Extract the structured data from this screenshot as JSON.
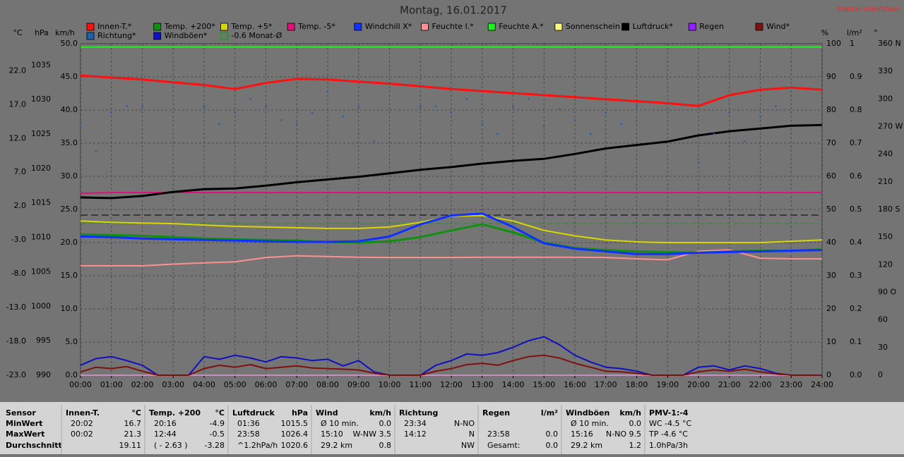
{
  "title": "Montag, 16.01.2017",
  "station": "Station Göritzhain",
  "chart_data": {
    "type": "line",
    "x": [
      0,
      1,
      2,
      3,
      4,
      5,
      6,
      7,
      8,
      9,
      10,
      11,
      12,
      13,
      14,
      15,
      16,
      17,
      18,
      19,
      20,
      21,
      22,
      23,
      24
    ],
    "xlim": [
      0,
      24
    ],
    "xticks": [
      {
        "value": 0,
        "label": "00:00"
      },
      {
        "value": 1,
        "label": "01:00"
      },
      {
        "value": 2,
        "label": "02:00"
      },
      {
        "value": 3,
        "label": "03:00"
      },
      {
        "value": 4,
        "label": "04:00"
      },
      {
        "value": 5,
        "label": "05:00"
      },
      {
        "value": 6,
        "label": "06:00"
      },
      {
        "value": 7,
        "label": "07:00"
      },
      {
        "value": 8,
        "label": "08:00"
      },
      {
        "value": 9,
        "label": "09:00"
      },
      {
        "value": 10,
        "label": "10:00"
      },
      {
        "value": 11,
        "label": "11:00"
      },
      {
        "value": 12,
        "label": "12:00"
      },
      {
        "value": 13,
        "label": "13:00"
      },
      {
        "value": 14,
        "label": "14:00"
      },
      {
        "value": 15,
        "label": "15:00"
      },
      {
        "value": 16,
        "label": "16:00"
      },
      {
        "value": 17,
        "label": "17:00"
      },
      {
        "value": 18,
        "label": "18:00"
      },
      {
        "value": 19,
        "label": "19:00"
      },
      {
        "value": 20,
        "label": "20:00"
      },
      {
        "value": 21,
        "label": "21:00"
      },
      {
        "value": 22,
        "label": "22:00"
      },
      {
        "value": 23,
        "label": "23:00"
      },
      {
        "value": 24,
        "label": "24:00"
      }
    ],
    "grid": true,
    "axes": {
      "temp": {
        "label": "°C",
        "side": "left",
        "ylim": [
          -23,
          26
        ],
        "yticks": [
          {
            "value": -23,
            "label": "-23.0"
          },
          {
            "value": -18,
            "label": "-18.0"
          },
          {
            "value": -13,
            "label": "-13.0"
          },
          {
            "value": -8,
            "label": "-8.0"
          },
          {
            "value": -3,
            "label": "-3.0"
          },
          {
            "value": 2,
            "label": "2.0"
          },
          {
            "value": 7,
            "label": "7.0"
          },
          {
            "value": 12,
            "label": "12.0"
          },
          {
            "value": 17,
            "label": "17.0"
          },
          {
            "value": 22,
            "label": "22.0"
          }
        ]
      },
      "pressure": {
        "label": "hPa",
        "side": "left",
        "ylim": [
          990,
          1038.1
        ],
        "yticks": [
          990,
          995,
          1000,
          1005,
          1010,
          1015,
          1020,
          1025,
          1030,
          1035
        ]
      },
      "wind": {
        "label": "km/h",
        "side": "left",
        "ylim": [
          0,
          50
        ],
        "yticks": [
          {
            "value": 0,
            "label": "0.0"
          },
          {
            "value": 5,
            "label": "5.0"
          },
          {
            "value": 10,
            "label": "10.0"
          },
          {
            "value": 15,
            "label": "15.0"
          },
          {
            "value": 20,
            "label": "20.0"
          },
          {
            "value": 25,
            "label": "25.0"
          },
          {
            "value": 30,
            "label": "30.0"
          },
          {
            "value": 35,
            "label": "35.0"
          },
          {
            "value": 40,
            "label": "40.0"
          },
          {
            "value": 45,
            "label": "45.0"
          },
          {
            "value": 50,
            "label": "50.0"
          }
        ]
      },
      "humidity": {
        "label": "%",
        "side": "right",
        "ylim": [
          0,
          100
        ],
        "yticks": [
          0,
          10,
          20,
          30,
          40,
          50,
          60,
          70,
          80,
          90,
          100
        ],
        "grid": true
      },
      "rain": {
        "label": "l/m²",
        "side": "right",
        "ylim": [
          0,
          1
        ],
        "yticks": [
          {
            "value": 0,
            "label": "0.0"
          },
          0.1,
          0.2,
          0.3,
          0.4,
          0.5,
          0.6,
          0.7,
          0.8,
          0.9,
          1
        ]
      },
      "direction": {
        "label": "°",
        "side": "right",
        "ylim": [
          0,
          360
        ],
        "yticks": [
          0,
          30,
          60,
          {
            "value": 90,
            "label": "90 O"
          },
          120,
          150,
          {
            "value": 180,
            "label": "180 S"
          },
          210,
          240,
          {
            "value": 270,
            "label": "270 W"
          },
          300,
          330,
          {
            "value": 360,
            "label": "360 N"
          }
        ]
      }
    },
    "series": [
      {
        "name": "Innen-T.*",
        "color": "#ff1010",
        "axis": "temp",
        "width": 3,
        "values": [
          21.3,
          21.0,
          20.7,
          20.3,
          19.9,
          19.3,
          20.2,
          20.8,
          20.7,
          20.4,
          20.1,
          19.7,
          19.3,
          19.0,
          18.7,
          18.4,
          18.1,
          17.8,
          17.5,
          17.2,
          16.8,
          18.4,
          19.2,
          19.5,
          19.2
        ]
      },
      {
        "name": "Temp. +200*",
        "color": "#109010",
        "axis": "temp",
        "width": 3,
        "values": [
          -2.2,
          -2.3,
          -2.4,
          -2.6,
          -2.8,
          -2.9,
          -3.0,
          -3.1,
          -3.3,
          -3.4,
          -3.2,
          -2.6,
          -1.6,
          -0.7,
          -1.9,
          -3.4,
          -4.2,
          -4.5,
          -4.7,
          -4.8,
          -4.9,
          -4.7,
          -4.6,
          -4.6,
          -4.4
        ]
      },
      {
        "name": "Temp. +5*",
        "color": "#d8d800",
        "axis": "temp",
        "width": 2,
        "values": [
          -0.2,
          -0.4,
          -0.5,
          -0.6,
          -0.8,
          -1.0,
          -1.1,
          -1.2,
          -1.3,
          -1.3,
          -1.1,
          -0.4,
          0.5,
          0.6,
          -0.2,
          -1.6,
          -2.4,
          -3.0,
          -3.3,
          -3.4,
          -3.4,
          -3.4,
          -3.4,
          -3.2,
          -3.0
        ]
      },
      {
        "name": "Temp. -5*",
        "color": "#e0107a",
        "axis": "temp",
        "width": 2,
        "values": [
          3.9,
          4.0,
          4.0,
          4.0,
          4.0,
          4.0,
          4.0,
          4.0,
          4.0,
          4.0,
          4.0,
          4.0,
          4.0,
          4.0,
          4.0,
          4.0,
          4.0,
          4.0,
          4.0,
          4.0,
          4.0,
          4.0,
          4.0,
          4.0,
          4.0
        ]
      },
      {
        "name": "Windchill X*",
        "color": "#1030ff",
        "axis": "temp",
        "width": 3,
        "values": [
          -2.5,
          -2.6,
          -2.8,
          -2.9,
          -3.0,
          -3.1,
          -3.2,
          -3.3,
          -3.3,
          -3.2,
          -2.5,
          -0.7,
          0.6,
          0.9,
          -1.1,
          -3.5,
          -4.3,
          -4.7,
          -5.1,
          -5.1,
          -4.9,
          -4.8,
          -4.7,
          -4.6,
          -4.5
        ]
      },
      {
        "name": "Feuchte I.*",
        "color": "#ff9090",
        "axis": "humidity",
        "width": 2,
        "values": [
          33.0,
          33.0,
          33.0,
          33.5,
          33.9,
          34.2,
          35.5,
          36.0,
          35.8,
          35.6,
          35.5,
          35.5,
          35.5,
          35.6,
          35.6,
          35.6,
          35.6,
          35.5,
          35.1,
          34.8,
          37.4,
          37.8,
          35.3,
          35.1,
          35.1
        ]
      },
      {
        "name": "Feuchte A.*",
        "color": "#20f020",
        "axis": "humidity",
        "width": 2,
        "values": [
          99,
          99,
          99,
          99,
          99,
          99,
          99,
          99,
          99,
          99,
          99,
          99,
          99,
          99,
          99,
          99,
          99,
          99,
          99,
          99,
          99,
          99,
          99,
          99,
          99
        ]
      },
      {
        "name": "Sonnenschein",
        "color": "#ffff80",
        "axis": "wind",
        "width": 2,
        "values": [
          0,
          0,
          0,
          0,
          0,
          0,
          0,
          0,
          0,
          0,
          0,
          0,
          0,
          0,
          0,
          0,
          0,
          0,
          0,
          0,
          0,
          0,
          0,
          0,
          0
        ]
      },
      {
        "name": "Luftdruck*",
        "color": "#000000",
        "axis": "pressure",
        "width": 3,
        "values": [
          1015.8,
          1015.7,
          1016.0,
          1016.6,
          1017.0,
          1017.1,
          1017.5,
          1018.0,
          1018.4,
          1018.8,
          1019.3,
          1019.8,
          1020.2,
          1020.7,
          1021.1,
          1021.4,
          1022.1,
          1022.9,
          1023.4,
          1023.9,
          1024.8,
          1025.4,
          1025.8,
          1026.2,
          1026.3
        ]
      },
      {
        "name": "Regen",
        "color": "#9020ff",
        "axis": "rain",
        "width": 1,
        "values": [
          0,
          0,
          0,
          0,
          0,
          0,
          0,
          0,
          0,
          0,
          0,
          0,
          0,
          0,
          0,
          0,
          0,
          0,
          0,
          0,
          0,
          0,
          0,
          0,
          0
        ]
      },
      {
        "name": "Wind*",
        "color": "#801010",
        "axis": "wind",
        "width": 2,
        "x": [
          0,
          0.5,
          1,
          1.5,
          2,
          2.5,
          3,
          3.5,
          4,
          4.5,
          5,
          5.5,
          6,
          6.5,
          7,
          7.5,
          8,
          8.5,
          9,
          9.5,
          10,
          10.5,
          11,
          11.5,
          12,
          12.5,
          13,
          13.5,
          14,
          14.5,
          15,
          15.5,
          16,
          16.5,
          17,
          17.5,
          18,
          18.5,
          19,
          19.5,
          20,
          20.5,
          21,
          21.5,
          22,
          22.5,
          23,
          23.5,
          24
        ],
        "values": [
          0.5,
          1.2,
          1.0,
          1.3,
          0.6,
          0,
          0,
          0,
          1.0,
          1.5,
          1.2,
          1.6,
          1.0,
          1.2,
          1.4,
          1.1,
          1.0,
          0.9,
          0.8,
          0.3,
          0,
          0,
          0,
          0.6,
          1.0,
          1.6,
          1.8,
          1.5,
          2.2,
          2.8,
          3.0,
          2.6,
          1.8,
          1.2,
          0.6,
          0.5,
          0.3,
          0,
          0,
          0,
          0.5,
          0.8,
          0.6,
          0.9,
          0.5,
          0.2,
          0,
          0,
          0
        ]
      },
      {
        "name": "Richtung*",
        "color": "#2060b0",
        "axis": "direction",
        "kind": "scatter",
        "x": [
          0,
          0.5,
          1,
          1.5,
          2,
          2.5,
          3,
          3.5,
          4,
          4.5,
          5,
          5.5,
          6,
          6.5,
          7,
          7.5,
          8,
          8.5,
          9,
          9.5,
          10,
          10.5,
          11,
          11.5,
          12,
          12.5,
          13,
          13.5,
          14,
          14.5,
          15,
          15.5,
          16,
          16.5,
          17,
          17.5,
          18,
          18.5,
          19,
          19.5,
          20,
          20.5,
          21,
          21.5,
          22,
          22.5,
          23,
          23.5,
          24
        ],
        "values": [
          270,
          243,
          285,
          292,
          292,
          null,
          null,
          null,
          292,
          273,
          285,
          300,
          292,
          277,
          273,
          285,
          308,
          281,
          292,
          254,
          null,
          null,
          292,
          292,
          285,
          300,
          273,
          262,
          292,
          300,
          270,
          289,
          277,
          262,
          285,
          273,
          292,
          null,
          null,
          null,
          231,
          262,
          285,
          254,
          281,
          292,
          null,
          null,
          null
        ]
      },
      {
        "name": "Windböen*",
        "color": "#1010c0",
        "axis": "wind",
        "width": 2,
        "x": [
          0,
          0.5,
          1,
          1.5,
          2,
          2.5,
          3,
          3.5,
          4,
          4.5,
          5,
          5.5,
          6,
          6.5,
          7,
          7.5,
          8,
          8.5,
          9,
          9.5,
          10,
          10.5,
          11,
          11.5,
          12,
          12.5,
          13,
          13.5,
          14,
          14.5,
          15,
          15.5,
          16,
          16.5,
          17,
          17.5,
          18,
          18.5,
          19,
          19.5,
          20,
          20.5,
          21,
          21.5,
          22,
          22.5,
          23,
          23.5,
          24
        ],
        "values": [
          1.5,
          2.5,
          2.8,
          2.2,
          1.5,
          0,
          0,
          0,
          2.8,
          2.4,
          3.0,
          2.6,
          2.0,
          2.8,
          2.6,
          2.2,
          2.4,
          1.4,
          2.2,
          0.5,
          0,
          0,
          0,
          1.5,
          2.2,
          3.2,
          3.0,
          3.4,
          4.2,
          5.2,
          5.8,
          4.6,
          3.0,
          2.0,
          1.2,
          1.0,
          0.6,
          0,
          0,
          0,
          1.2,
          1.4,
          0.8,
          1.4,
          1.0,
          0.3,
          0,
          0,
          0
        ]
      }
    ],
    "reference": {
      "name": "-0.6 Monat-Ø",
      "value": -0.6,
      "color": "#10a010",
      "axis": "temp"
    }
  },
  "table": {
    "row_labels": [
      "Sensor",
      "MinWert",
      "MaxWert",
      "Durchschnitt"
    ],
    "sections": [
      {
        "header": [
          "Innen-T.",
          "°C"
        ],
        "rows": [
          [
            "20:02",
            "16.7"
          ],
          [
            "00:02",
            "21.3"
          ],
          [
            null,
            "19.11"
          ]
        ]
      },
      {
        "header": [
          "Temp. +200",
          "°C"
        ],
        "rows": [
          [
            "20:16",
            "-4.9"
          ],
          [
            "12:44",
            "-0.5"
          ],
          [
            "( - 2.63 )",
            "-3.28"
          ]
        ]
      },
      {
        "header": [
          "Luftdruck",
          "hPa"
        ],
        "rows": [
          [
            "01:36",
            "1015.5"
          ],
          [
            "23:58",
            "1026.4"
          ],
          [
            "^1.2hPa/h",
            "1020.6"
          ]
        ]
      },
      {
        "header": [
          "Wind",
          "km/h"
        ],
        "rows": [
          [
            "Ø 10 min.",
            "0.0"
          ],
          [
            "15:10",
            "W-NW 3.5"
          ],
          [
            "29.2 km",
            "0.8"
          ]
        ]
      },
      {
        "header": [
          "Richtung"
        ],
        "rows": [
          [
            "23:34",
            "N-NO"
          ],
          [
            "14:12",
            "N"
          ],
          [
            null,
            "NW"
          ]
        ]
      },
      {
        "header": [
          "Regen",
          "l/m²"
        ],
        "rows": [
          [
            null,
            null
          ],
          [
            "23:58",
            "0.0"
          ],
          [
            "Gesamt:",
            "0.0"
          ]
        ]
      },
      {
        "header": [
          "Windböen",
          "km/h"
        ],
        "rows": [
          [
            "Ø 10 min.",
            "0.0"
          ],
          [
            "15:16",
            "N-NO 9.5"
          ],
          [
            "29.2 km",
            "1.2"
          ]
        ]
      },
      {
        "header": [
          "PMV-1:-4"
        ],
        "rows": [
          [
            "WC -4.5 °C"
          ],
          [
            "TP -4.6 °C"
          ],
          [
            "1.0hPa/3h"
          ]
        ]
      }
    ]
  }
}
